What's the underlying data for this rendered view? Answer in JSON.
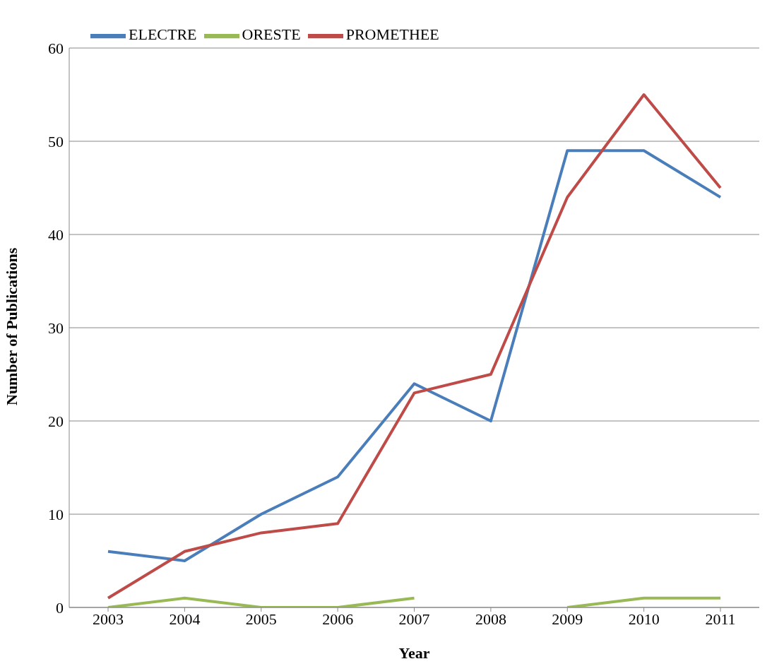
{
  "chart_data": {
    "type": "line",
    "xlabel": "Year",
    "ylabel": "Number of Publications",
    "categories": [
      "2003",
      "2004",
      "2005",
      "2006",
      "2007",
      "2008",
      "2009",
      "2010",
      "2011"
    ],
    "series": [
      {
        "name": "ELECTRE",
        "color": "#4a7ebb",
        "values": [
          6,
          5,
          10,
          14,
          24,
          20,
          49,
          49,
          44
        ]
      },
      {
        "name": "PROMETHEE",
        "color": "#be4b48",
        "values": [
          1,
          6,
          8,
          9,
          23,
          25,
          44,
          55,
          45
        ]
      },
      {
        "name": "ORESTE",
        "color": "#98b954",
        "values": [
          0,
          1,
          0,
          0,
          1,
          null,
          0,
          1,
          1
        ]
      }
    ],
    "ylim": [
      0,
      60
    ],
    "yticks": [
      0,
      10,
      20,
      30,
      40,
      50,
      60
    ],
    "grid": "y",
    "legend": "top left",
    "marker": "none",
    "line_style": "solid"
  }
}
